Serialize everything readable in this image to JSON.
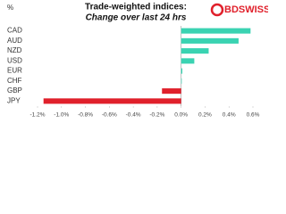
{
  "chart_data": {
    "type": "hbar",
    "title": "Trade-weighted indices:",
    "subtitle": "Change over last 24 hrs",
    "unit_label": "%",
    "logo": "BDSWISS",
    "categories": [
      "CAD",
      "AUD",
      "NZD",
      "USD",
      "EUR",
      "CHF",
      "GBP",
      "JPY"
    ],
    "values": [
      0.58,
      0.48,
      0.23,
      0.11,
      0.01,
      0.005,
      -0.16,
      -1.15
    ],
    "positive_color": "#3ad3b2",
    "negative_color": "#e0202b",
    "xlim": [
      -1.2,
      0.6
    ],
    "xticks": [
      {
        "value": -1.2,
        "label": "-1.2%"
      },
      {
        "value": -1.0,
        "label": "-1.0%"
      },
      {
        "value": -0.8,
        "label": "-0.8%"
      },
      {
        "value": -0.6,
        "label": "-0.6%"
      },
      {
        "value": -0.4,
        "label": "-0.4%"
      },
      {
        "value": -0.2,
        "label": "-0.2%"
      },
      {
        "value": 0,
        "label": "0.0%"
      },
      {
        "value": 0.2,
        "label": "0.2%"
      },
      {
        "value": 0.4,
        "label": "0.4%"
      },
      {
        "value": 0.6,
        "label": "0.6%"
      }
    ]
  }
}
